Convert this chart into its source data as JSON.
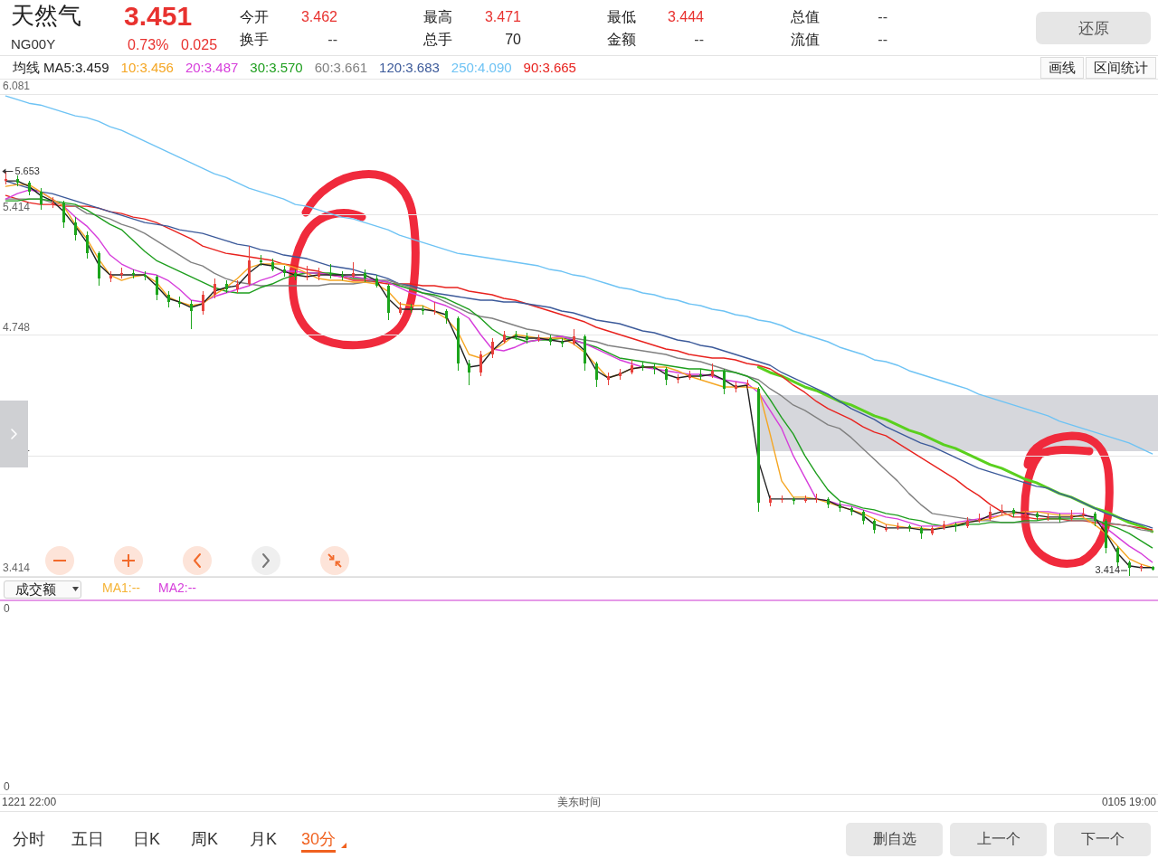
{
  "chart_data": [
    {
      "type": "other",
      "title": "天然气",
      "subtitle": "NG00Y",
      "annotations": [
        "3.451",
        "0.73%",
        "0.025",
        "今开",
        "3.462",
        "换手",
        "--",
        "最高",
        "3.471",
        "总手",
        "70",
        "最低",
        "3.444",
        "金额",
        "--",
        "总值",
        "--",
        "流值",
        "--",
        "还原"
      ]
    },
    {
      "type": "candlestick",
      "legend_title": "均线",
      "legend": "top left",
      "categories": [
        null,
        null,
        null,
        null,
        null,
        null,
        null,
        null,
        null,
        null,
        null,
        null,
        null,
        null,
        null,
        null,
        null,
        null,
        null,
        null,
        null,
        null,
        null,
        null,
        null,
        null,
        null,
        null,
        null,
        null,
        null,
        null,
        null,
        null,
        null,
        null,
        null,
        null,
        null,
        null,
        null,
        null,
        null,
        null,
        null,
        null,
        null,
        null,
        null,
        null,
        null,
        null,
        null,
        null,
        null,
        null,
        null,
        null,
        null,
        null,
        null,
        null,
        null,
        null,
        null,
        null,
        null,
        null,
        null,
        null,
        null,
        null,
        null,
        null,
        null,
        null,
        null,
        null,
        null,
        null,
        null,
        null,
        null,
        null,
        null,
        null,
        null,
        null,
        null,
        null,
        null,
        null,
        null,
        null,
        null,
        null,
        null,
        null,
        null,
        null
      ],
      "ohlc": [
        [
          5.6,
          5.653,
          5.58,
          5.61
        ],
        [
          5.61,
          5.63,
          5.57,
          5.59
        ],
        [
          5.59,
          5.6,
          5.52,
          5.54
        ],
        [
          5.54,
          5.56,
          5.44,
          5.47
        ],
        [
          5.47,
          5.51,
          5.45,
          5.48
        ],
        [
          5.48,
          5.49,
          5.34,
          5.37
        ],
        [
          5.37,
          5.4,
          5.27,
          5.3
        ],
        [
          5.3,
          5.32,
          5.17,
          5.2
        ],
        [
          5.2,
          5.21,
          5.02,
          5.06
        ],
        [
          5.06,
          5.1,
          5.04,
          5.08
        ],
        [
          5.08,
          5.12,
          5.06,
          5.09
        ],
        [
          5.09,
          5.11,
          5.06,
          5.08
        ],
        [
          5.08,
          5.1,
          5.05,
          5.07
        ],
        [
          5.07,
          5.08,
          4.94,
          4.97
        ],
        [
          4.97,
          4.99,
          4.9,
          4.93
        ],
        [
          4.93,
          4.96,
          4.9,
          4.92
        ],
        [
          4.92,
          4.94,
          4.78,
          4.88
        ],
        [
          4.88,
          4.99,
          4.86,
          4.97
        ],
        [
          4.97,
          5.06,
          4.95,
          5.03
        ],
        [
          5.03,
          5.05,
          4.98,
          5.0
        ],
        [
          5.0,
          5.05,
          4.98,
          5.03
        ],
        [
          5.03,
          5.24,
          5.02,
          5.16
        ],
        [
          5.16,
          5.19,
          5.13,
          5.15
        ],
        [
          5.15,
          5.17,
          5.1,
          5.11
        ],
        [
          5.11,
          5.13,
          5.07,
          5.09
        ],
        [
          5.09,
          5.11,
          5.05,
          5.07
        ],
        [
          5.07,
          5.13,
          5.05,
          5.07
        ],
        [
          5.07,
          5.12,
          5.05,
          5.09
        ],
        [
          5.09,
          5.14,
          5.06,
          5.08
        ],
        [
          5.08,
          5.1,
          5.05,
          5.07
        ],
        [
          5.07,
          5.15,
          5.06,
          5.09
        ],
        [
          5.09,
          5.11,
          5.04,
          5.06
        ],
        [
          5.06,
          5.08,
          5.01,
          5.02
        ],
        [
          5.02,
          5.03,
          4.83,
          4.87
        ],
        [
          4.87,
          4.93,
          4.86,
          4.9
        ],
        [
          4.9,
          4.92,
          4.87,
          4.89
        ],
        [
          4.89,
          4.91,
          4.86,
          4.88
        ],
        [
          4.88,
          4.93,
          4.86,
          4.88
        ],
        [
          4.88,
          4.89,
          4.81,
          4.84
        ],
        [
          4.84,
          4.85,
          4.55,
          4.59
        ],
        [
          4.59,
          4.61,
          4.47,
          4.54
        ],
        [
          4.54,
          4.66,
          4.52,
          4.64
        ],
        [
          4.64,
          4.73,
          4.62,
          4.71
        ],
        [
          4.71,
          4.77,
          4.7,
          4.75
        ],
        [
          4.75,
          4.77,
          4.72,
          4.74
        ],
        [
          4.74,
          4.76,
          4.7,
          4.72
        ],
        [
          4.72,
          4.75,
          4.71,
          4.73
        ],
        [
          4.73,
          4.75,
          4.69,
          4.71
        ],
        [
          4.71,
          4.73,
          4.68,
          4.7
        ],
        [
          4.7,
          4.78,
          4.69,
          4.74
        ],
        [
          4.74,
          4.75,
          4.55,
          4.59
        ],
        [
          4.59,
          4.6,
          4.46,
          4.5
        ],
        [
          4.5,
          4.54,
          4.47,
          4.52
        ],
        [
          4.52,
          4.56,
          4.5,
          4.54
        ],
        [
          4.54,
          4.61,
          4.53,
          4.58
        ],
        [
          4.58,
          4.6,
          4.55,
          4.57
        ],
        [
          4.57,
          4.59,
          4.53,
          4.56
        ],
        [
          4.56,
          4.57,
          4.47,
          4.5
        ],
        [
          4.5,
          4.53,
          4.48,
          4.51
        ],
        [
          4.51,
          4.55,
          4.5,
          4.53
        ],
        [
          4.53,
          4.56,
          4.5,
          4.52
        ],
        [
          4.52,
          4.59,
          4.51,
          4.55
        ],
        [
          4.55,
          4.56,
          4.42,
          4.45
        ],
        [
          4.45,
          4.49,
          4.43,
          4.47
        ],
        [
          4.47,
          4.5,
          4.45,
          4.48
        ],
        [
          4.45,
          4.46,
          3.77,
          3.82
        ],
        [
          3.82,
          3.86,
          3.8,
          3.84
        ],
        [
          3.84,
          3.86,
          3.82,
          3.84
        ],
        [
          3.84,
          3.85,
          3.81,
          3.83
        ],
        [
          3.83,
          3.86,
          3.82,
          3.84
        ],
        [
          3.84,
          3.87,
          3.82,
          3.84
        ],
        [
          3.84,
          3.85,
          3.79,
          3.81
        ],
        [
          3.81,
          3.83,
          3.77,
          3.79
        ],
        [
          3.79,
          3.8,
          3.75,
          3.77
        ],
        [
          3.77,
          3.78,
          3.7,
          3.72
        ],
        [
          3.72,
          3.73,
          3.65,
          3.67
        ],
        [
          3.67,
          3.7,
          3.66,
          3.68
        ],
        [
          3.68,
          3.71,
          3.67,
          3.69
        ],
        [
          3.69,
          3.7,
          3.66,
          3.68
        ],
        [
          3.68,
          3.69,
          3.62,
          3.65
        ],
        [
          3.65,
          3.69,
          3.64,
          3.68
        ],
        [
          3.68,
          3.72,
          3.67,
          3.7
        ],
        [
          3.7,
          3.71,
          3.66,
          3.69
        ],
        [
          3.69,
          3.74,
          3.68,
          3.72
        ],
        [
          3.72,
          3.76,
          3.71,
          3.73
        ],
        [
          3.73,
          3.8,
          3.72,
          3.77
        ],
        [
          3.77,
          3.81,
          3.75,
          3.78
        ],
        [
          3.78,
          3.79,
          3.74,
          3.76
        ],
        [
          3.76,
          3.78,
          3.74,
          3.76
        ],
        [
          3.76,
          3.77,
          3.72,
          3.74
        ],
        [
          3.74,
          3.76,
          3.72,
          3.74
        ],
        [
          3.74,
          3.76,
          3.71,
          3.73
        ],
        [
          3.73,
          3.78,
          3.72,
          3.75
        ],
        [
          3.75,
          3.79,
          3.74,
          3.76
        ],
        [
          3.76,
          3.77,
          3.69,
          3.72
        ],
        [
          3.72,
          3.73,
          3.54,
          3.57
        ],
        [
          3.57,
          3.58,
          3.46,
          3.49
        ],
        [
          3.49,
          3.5,
          3.414,
          3.46
        ],
        [
          3.46,
          3.48,
          3.44,
          3.47
        ],
        [
          3.462,
          3.471,
          3.444,
          3.451
        ]
      ],
      "colors": [
        "#e8413c",
        "#1ca51c",
        "#1ca51c",
        "#1ca51c",
        "#e8413c",
        "#1ca51c",
        "#1ca51c",
        "#1ca51c",
        "#1ca51c",
        "#e8413c",
        "#e8413c",
        "#1ca51c",
        "#1ca51c",
        "#1ca51c",
        "#1ca51c",
        "#1ca51c",
        "#1ca51c",
        "#e8413c",
        "#e8413c",
        "#1ca51c",
        "#e8413c",
        "#e8413c",
        "#1ca51c",
        "#1ca51c",
        "#1ca51c",
        "#1ca51c",
        "#e8413c",
        "#e8413c",
        "#1ca51c",
        "#1ca51c",
        "#e8413c",
        "#1ca51c",
        "#1ca51c",
        "#1ca51c",
        "#e8413c",
        "#1ca51c",
        "#1ca51c",
        "#e8413c",
        "#1ca51c",
        "#1ca51c",
        "#1ca51c",
        "#e8413c",
        "#e8413c",
        "#e8413c",
        "#1ca51c",
        "#1ca51c",
        "#e8413c",
        "#1ca51c",
        "#1ca51c",
        "#e8413c",
        "#1ca51c",
        "#1ca51c",
        "#e8413c",
        "#e8413c",
        "#e8413c",
        "#1ca51c",
        "#1ca51c",
        "#1ca51c",
        "#e8413c",
        "#e8413c",
        "#1ca51c",
        "#e8413c",
        "#1ca51c",
        "#e8413c",
        "#e8413c",
        "#1ca51c",
        "#e8413c",
        "#e8413c",
        "#1ca51c",
        "#e8413c",
        "#e8413c",
        "#1ca51c",
        "#1ca51c",
        "#1ca51c",
        "#1ca51c",
        "#1ca51c",
        "#e8413c",
        "#e8413c",
        "#1ca51c",
        "#1ca51c",
        "#e8413c",
        "#e8413c",
        "#1ca51c",
        "#e8413c",
        "#e8413c",
        "#e8413c",
        "#e8413c",
        "#1ca51c",
        "#e8413c",
        "#1ca51c",
        "#e8413c",
        "#1ca51c",
        "#e8413c",
        "#e8413c",
        "#1ca51c",
        "#1ca51c",
        "#1ca51c",
        "#1ca51c",
        "#e8413c",
        "#1ca51c"
      ],
      "series": [
        {
          "name": "MA5:3.459",
          "type": "line",
          "color": "#222222",
          "values": [
            5.6,
            5.6,
            5.57,
            5.52,
            5.49,
            5.43,
            5.35,
            5.26,
            5.14,
            5.08,
            5.08,
            5.08,
            5.08,
            5.02,
            4.95,
            4.93,
            4.9,
            4.92,
            4.99,
            5.01,
            5.02,
            5.09,
            5.14,
            5.13,
            5.1,
            5.08,
            5.07,
            5.08,
            5.08,
            5.08,
            5.08,
            5.08,
            5.05,
            4.95,
            4.89,
            4.89,
            4.89,
            4.88,
            4.86,
            4.72,
            4.57,
            4.58,
            4.66,
            4.72,
            4.74,
            4.73,
            4.73,
            4.72,
            4.71,
            4.72,
            4.66,
            4.55,
            4.51,
            4.53,
            4.56,
            4.57,
            4.57,
            4.53,
            4.51,
            4.52,
            4.52,
            4.53,
            4.5,
            4.46,
            4.47,
            4.05,
            3.84,
            3.84,
            3.84,
            3.84,
            3.84,
            3.83,
            3.8,
            3.78,
            3.75,
            3.7,
            3.68,
            3.68,
            3.68,
            3.67,
            3.67,
            3.68,
            3.69,
            3.71,
            3.72,
            3.75,
            3.77,
            3.77,
            3.76,
            3.75,
            3.74,
            3.74,
            3.74,
            3.75,
            3.74,
            3.65,
            3.54,
            3.47,
            3.46,
            3.46
          ]
        },
        {
          "name": "10:3.456",
          "type": "line",
          "color": "#f5a623",
          "values": [
            5.57,
            5.58,
            5.58,
            5.54,
            5.5,
            5.46,
            5.36,
            5.28,
            5.17,
            5.08,
            5.05,
            5.07,
            5.08,
            5.04,
            4.96,
            4.93,
            4.91,
            4.92,
            4.97,
            5.01,
            5.06,
            5.12,
            5.14,
            5.14,
            5.14,
            5.12,
            5.09,
            5.06,
            5.05,
            5.05,
            5.04,
            5.04,
            5.03,
            4.99,
            4.92,
            4.91,
            4.91,
            4.88,
            4.84,
            4.77,
            4.64,
            4.62,
            4.66,
            4.7,
            4.75,
            4.74,
            4.73,
            4.73,
            4.73,
            4.7,
            4.65,
            4.58,
            4.51,
            4.53,
            4.56,
            4.57,
            4.57,
            4.57,
            4.55,
            4.52,
            4.5,
            4.48,
            4.46,
            4.46,
            4.46,
            4.45,
            4.2,
            3.94,
            3.85,
            3.85,
            3.84,
            3.82,
            3.8,
            3.78,
            3.76,
            3.73,
            3.7,
            3.69,
            3.68,
            3.68,
            3.67,
            3.69,
            3.7,
            3.71,
            3.72,
            3.73,
            3.75,
            3.76,
            3.77,
            3.77,
            3.76,
            3.75,
            3.75,
            3.74,
            3.7,
            3.65,
            3.58,
            3.51,
            3.48,
            3.46
          ]
        },
        {
          "name": "20:3.487",
          "type": "line",
          "color": "#d63ddb",
          "values": [
            5.5,
            5.53,
            5.55,
            5.54,
            5.5,
            5.46,
            5.4,
            5.35,
            5.28,
            5.19,
            5.14,
            5.11,
            5.09,
            5.08,
            5.05,
            5.0,
            4.94,
            4.93,
            4.96,
            4.98,
            5.0,
            5.02,
            5.05,
            5.07,
            5.1,
            5.1,
            5.09,
            5.09,
            5.08,
            5.07,
            5.07,
            5.06,
            5.05,
            5.04,
            5.01,
            4.98,
            4.96,
            4.93,
            4.91,
            4.88,
            4.84,
            4.75,
            4.67,
            4.66,
            4.68,
            4.71,
            4.72,
            4.73,
            4.74,
            4.72,
            4.7,
            4.67,
            4.64,
            4.61,
            4.59,
            4.57,
            4.56,
            4.55,
            4.54,
            4.53,
            4.53,
            4.52,
            4.5,
            4.49,
            4.48,
            4.43,
            4.33,
            4.23,
            4.08,
            3.96,
            3.84,
            3.83,
            3.81,
            3.8,
            3.78,
            3.76,
            3.74,
            3.73,
            3.71,
            3.69,
            3.69,
            3.69,
            3.71,
            3.72,
            3.73,
            3.74,
            3.75,
            3.76,
            3.76,
            3.77,
            3.77,
            3.76,
            3.76,
            3.76,
            3.73,
            3.68,
            3.63,
            3.58,
            3.54,
            3.49
          ]
        },
        {
          "name": "30:3.570",
          "type": "line",
          "color": "#1e9e1e",
          "values": [
            5.49,
            5.49,
            5.5,
            5.5,
            5.49,
            5.48,
            5.47,
            5.44,
            5.4,
            5.36,
            5.33,
            5.27,
            5.21,
            5.16,
            5.13,
            5.1,
            5.07,
            5.04,
            5.01,
            4.99,
            4.98,
            4.98,
            5.01,
            5.03,
            5.06,
            5.08,
            5.09,
            5.09,
            5.09,
            5.08,
            5.06,
            5.06,
            5.05,
            5.04,
            5.02,
            5.0,
            4.98,
            4.97,
            4.95,
            4.92,
            4.89,
            4.84,
            4.78,
            4.74,
            4.73,
            4.71,
            4.72,
            4.72,
            4.73,
            4.72,
            4.7,
            4.68,
            4.65,
            4.62,
            4.61,
            4.6,
            4.59,
            4.58,
            4.57,
            4.56,
            4.56,
            4.55,
            4.55,
            4.54,
            4.52,
            4.48,
            4.39,
            4.29,
            4.2,
            4.08,
            3.98,
            3.89,
            3.83,
            3.81,
            3.79,
            3.78,
            3.76,
            3.75,
            3.73,
            3.72,
            3.7,
            3.69,
            3.69,
            3.7,
            3.7,
            3.71,
            3.71,
            3.71,
            3.72,
            3.72,
            3.73,
            3.73,
            3.73,
            3.73,
            3.73,
            3.7,
            3.68,
            3.65,
            3.61,
            3.57
          ]
        },
        {
          "name": "60:3.661",
          "type": "line",
          "color": "#808080",
          "values": [
            5.5,
            5.5,
            5.5,
            5.5,
            5.48,
            5.47,
            5.46,
            5.42,
            5.41,
            5.39,
            5.36,
            5.34,
            5.31,
            5.27,
            5.23,
            5.19,
            5.15,
            5.13,
            5.09,
            5.06,
            5.04,
            5.03,
            5.02,
            5.02,
            5.02,
            5.02,
            5.02,
            5.02,
            5.03,
            5.03,
            5.03,
            5.04,
            5.05,
            5.05,
            5.03,
            5.01,
            4.98,
            4.96,
            4.93,
            4.9,
            4.87,
            4.85,
            4.84,
            4.82,
            4.8,
            4.78,
            4.77,
            4.75,
            4.74,
            4.73,
            4.72,
            4.71,
            4.69,
            4.68,
            4.67,
            4.66,
            4.65,
            4.64,
            4.62,
            4.61,
            4.6,
            4.58,
            4.56,
            4.54,
            4.52,
            4.5,
            4.45,
            4.41,
            4.36,
            4.33,
            4.29,
            4.25,
            4.23,
            4.18,
            4.12,
            4.06,
            4.0,
            3.94,
            3.87,
            3.81,
            3.76,
            3.75,
            3.74,
            3.73,
            3.72,
            3.72,
            3.71,
            3.71,
            3.71,
            3.71,
            3.71,
            3.71,
            3.72,
            3.72,
            3.72,
            3.71,
            3.7,
            3.69,
            3.67,
            3.66
          ]
        },
        {
          "name": "120:3.683",
          "type": "line",
          "color": "#3c5a9a",
          "values": [
            5.6,
            5.58,
            5.56,
            5.54,
            5.53,
            5.51,
            5.49,
            5.47,
            5.45,
            5.43,
            5.41,
            5.39,
            5.37,
            5.36,
            5.35,
            5.33,
            5.32,
            5.31,
            5.29,
            5.27,
            5.25,
            5.24,
            5.22,
            5.21,
            5.19,
            5.18,
            5.17,
            5.15,
            5.13,
            5.12,
            5.11,
            5.09,
            5.08,
            5.06,
            5.03,
            5.02,
            5.0,
            4.98,
            4.97,
            4.96,
            4.95,
            4.94,
            4.94,
            4.93,
            4.93,
            4.92,
            4.91,
            4.9,
            4.88,
            4.87,
            4.85,
            4.83,
            4.82,
            4.81,
            4.79,
            4.77,
            4.76,
            4.74,
            4.72,
            4.71,
            4.69,
            4.68,
            4.66,
            4.64,
            4.62,
            4.6,
            4.58,
            4.54,
            4.51,
            4.48,
            4.45,
            4.42,
            4.38,
            4.34,
            4.31,
            4.28,
            4.24,
            4.21,
            4.18,
            4.15,
            4.13,
            4.1,
            4.07,
            4.04,
            4.01,
            3.99,
            3.97,
            3.95,
            3.93,
            3.91,
            3.9,
            3.87,
            3.85,
            3.82,
            3.79,
            3.76,
            3.74,
            3.72,
            3.7,
            3.68
          ]
        },
        {
          "name": "250:4.090",
          "type": "line",
          "color": "#6ec3f4",
          "values": [
            6.07,
            6.05,
            6.03,
            6.02,
            6.0,
            5.98,
            5.96,
            5.95,
            5.93,
            5.9,
            5.88,
            5.85,
            5.82,
            5.79,
            5.76,
            5.73,
            5.7,
            5.67,
            5.64,
            5.62,
            5.59,
            5.56,
            5.54,
            5.52,
            5.5,
            5.47,
            5.46,
            5.44,
            5.42,
            5.4,
            5.39,
            5.37,
            5.35,
            5.33,
            5.3,
            5.28,
            5.26,
            5.24,
            5.22,
            5.2,
            5.19,
            5.18,
            5.17,
            5.16,
            5.15,
            5.14,
            5.13,
            5.11,
            5.1,
            5.08,
            5.07,
            5.05,
            5.03,
            5.01,
            5.0,
            4.98,
            4.97,
            4.95,
            4.94,
            4.92,
            4.91,
            4.89,
            4.88,
            4.86,
            4.85,
            4.83,
            4.82,
            4.8,
            4.77,
            4.75,
            4.73,
            4.71,
            4.68,
            4.66,
            4.64,
            4.61,
            4.6,
            4.58,
            4.55,
            4.53,
            4.51,
            4.49,
            4.47,
            4.45,
            4.42,
            4.4,
            4.38,
            4.36,
            4.34,
            4.32,
            4.3,
            4.27,
            4.25,
            4.23,
            4.21,
            4.19,
            4.17,
            4.15,
            4.12,
            4.09
          ]
        },
        {
          "name": "90:3.665",
          "type": "line",
          "color": "#e8221e",
          "values": [
            5.52,
            5.5,
            5.48,
            5.47,
            5.47,
            5.46,
            5.46,
            5.46,
            5.45,
            5.43,
            5.42,
            5.4,
            5.39,
            5.37,
            5.34,
            5.31,
            5.28,
            5.24,
            5.22,
            5.2,
            5.19,
            5.18,
            5.17,
            5.16,
            5.14,
            5.13,
            5.11,
            5.1,
            5.08,
            5.07,
            5.05,
            5.05,
            5.04,
            5.03,
            5.03,
            5.03,
            5.02,
            5.02,
            5.01,
            5.01,
            4.99,
            4.98,
            4.97,
            4.95,
            4.94,
            4.92,
            4.9,
            4.88,
            4.86,
            4.84,
            4.82,
            4.79,
            4.77,
            4.75,
            4.73,
            4.71,
            4.69,
            4.67,
            4.66,
            4.64,
            4.63,
            4.62,
            4.62,
            4.61,
            4.59,
            4.58,
            4.56,
            4.52,
            4.47,
            4.43,
            4.38,
            4.34,
            4.31,
            4.28,
            4.24,
            4.21,
            4.19,
            4.15,
            4.11,
            4.07,
            4.03,
            3.99,
            3.95,
            3.9,
            3.86,
            3.81,
            3.77,
            3.74,
            3.74,
            3.73,
            3.73,
            3.73,
            3.72,
            3.72,
            3.71,
            3.7,
            3.7,
            3.69,
            3.68,
            3.67
          ]
        },
        {
          "type": "line",
          "color": "#5ad01e",
          "values": [
            null,
            null,
            null,
            null,
            null,
            null,
            null,
            null,
            null,
            null,
            null,
            null,
            null,
            null,
            null,
            null,
            null,
            null,
            null,
            null,
            null,
            null,
            null,
            null,
            null,
            null,
            null,
            null,
            null,
            null,
            null,
            null,
            null,
            null,
            null,
            null,
            null,
            null,
            null,
            null,
            null,
            null,
            null,
            null,
            null,
            null,
            null,
            null,
            null,
            null,
            null,
            null,
            null,
            null,
            null,
            null,
            null,
            null,
            null,
            null,
            null,
            null,
            null,
            null,
            null,
            4.57,
            4.54,
            4.52,
            4.49,
            4.46,
            4.44,
            4.41,
            4.38,
            4.36,
            4.33,
            4.3,
            4.28,
            4.25,
            4.22,
            4.2,
            4.17,
            4.14,
            4.12,
            4.09,
            4.06,
            4.03,
            4.01,
            3.98,
            3.95,
            3.93,
            3.9,
            3.87,
            3.85,
            3.82,
            3.79,
            3.77,
            3.74,
            3.71,
            3.69,
            3.66
          ]
        }
      ],
      "ylim": [
        3.414,
        6.081
      ],
      "yticks": [
        3.414,
        4.081,
        4.748,
        5.414,
        6.081
      ],
      "grid": "y",
      "annotations": [
        "画线",
        "区间统计",
        "5.653",
        "3.414"
      ]
    },
    {
      "type": "other",
      "title": "成交额",
      "annotations": [
        "MA1:--",
        "MA2:--",
        "0",
        "0",
        "1221 22:00",
        "美东时间",
        "0105 19:00"
      ]
    },
    {
      "type": "other",
      "annotations": [
        "分时",
        "五日",
        "日K",
        "周K",
        "月K",
        "30分",
        "删自选",
        "上一个",
        "下一个"
      ]
    }
  ]
}
